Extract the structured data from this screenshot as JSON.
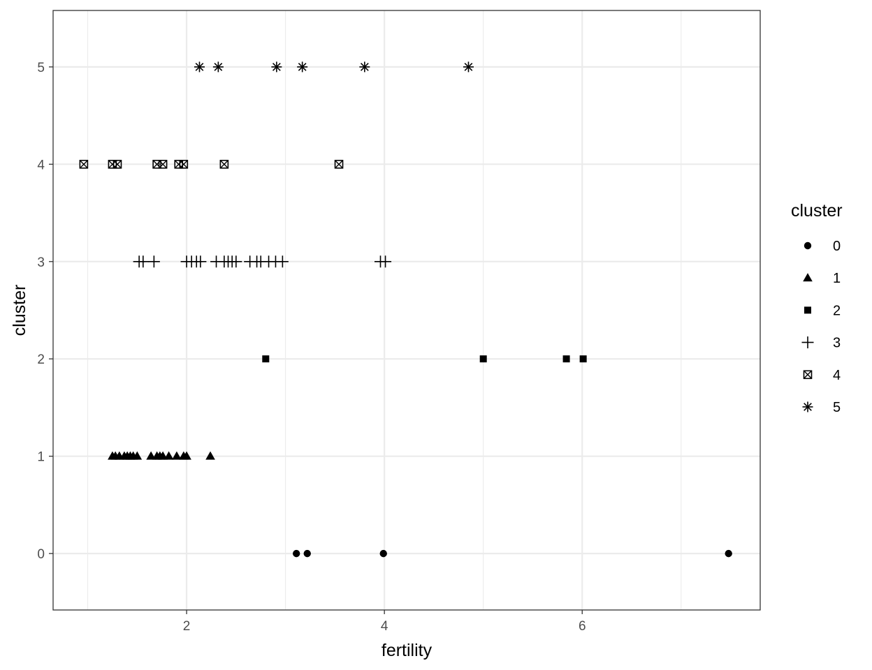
{
  "chart_data": {
    "type": "scatter",
    "title": "",
    "xlabel": "fertility",
    "ylabel": "cluster",
    "xlim": [
      0.65,
      7.8
    ],
    "ylim": [
      -0.58,
      5.58
    ],
    "x_ticks": [
      2,
      4,
      6
    ],
    "x_tick_labels": [
      "2",
      "4",
      "6"
    ],
    "y_ticks": [
      0,
      1,
      2,
      3,
      4,
      5
    ],
    "y_tick_labels": [
      "0",
      "1",
      "2",
      "3",
      "4",
      "5"
    ],
    "grid": true,
    "legend_title": "cluster",
    "legend_position": "right",
    "colors": {
      "points": "#000000",
      "grid": "#ebebeb",
      "panel_border": "#333333",
      "background": "#ffffff"
    },
    "series": [
      {
        "name": "0",
        "shape": "circle",
        "y": 0,
        "x": [
          3.11,
          3.22,
          3.99,
          7.48
        ]
      },
      {
        "name": "1",
        "shape": "triangle",
        "y": 1,
        "x": [
          1.25,
          1.28,
          1.32,
          1.37,
          1.4,
          1.43,
          1.46,
          1.5,
          1.64,
          1.7,
          1.73,
          1.76,
          1.82,
          1.9,
          1.97,
          2.0,
          2.24
        ]
      },
      {
        "name": "2",
        "shape": "square",
        "y": 2,
        "x": [
          2.8,
          5.0,
          5.84,
          6.01
        ]
      },
      {
        "name": "3",
        "shape": "plus",
        "y": 3,
        "x": [
          1.52,
          1.56,
          1.67,
          2.0,
          2.05,
          2.1,
          2.14,
          2.3,
          2.38,
          2.42,
          2.46,
          2.5,
          2.64,
          2.71,
          2.75,
          2.83,
          2.9,
          2.97,
          3.96,
          4.01
        ]
      },
      {
        "name": "4",
        "shape": "square-cross",
        "y": 4,
        "x": [
          0.96,
          1.25,
          1.3,
          1.7,
          1.76,
          1.92,
          1.97,
          2.38,
          3.54
        ]
      },
      {
        "name": "5",
        "shape": "asterisk",
        "y": 5,
        "x": [
          2.13,
          2.32,
          2.91,
          3.17,
          3.8,
          4.85
        ]
      }
    ]
  }
}
